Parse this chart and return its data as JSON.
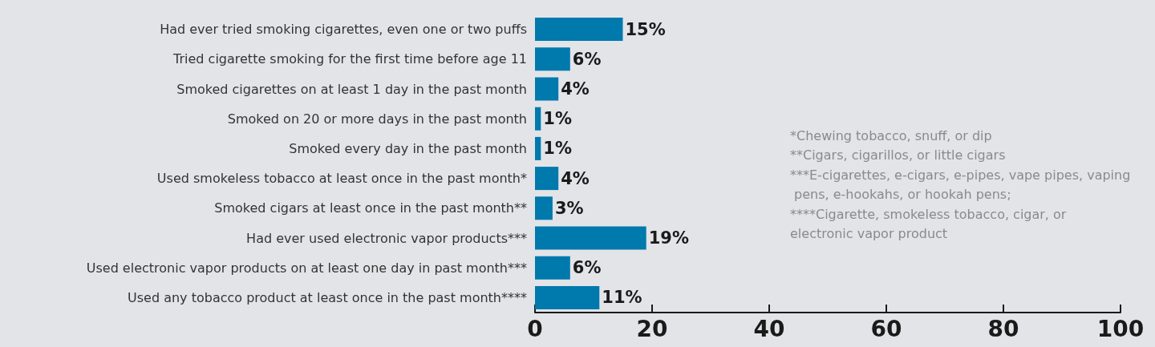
{
  "chart_data": {
    "type": "bar",
    "orientation": "horizontal",
    "categories": [
      "Had ever tried smoking cigarettes, even one or two puffs",
      "Tried cigarette smoking for the first time before age 11",
      "Smoked cigarettes on at least 1 day in the past month",
      "Smoked on 20 or more days in the past month",
      "Smoked every day in the past month",
      "Used smokeless tobacco at least once in the past month*",
      "Smoked cigars at least once in the past month**",
      "Had ever used electronic vapor products***",
      "Used electronic vapor products on at least one day in past month***",
      "Used any tobacco product at least once in the past month****"
    ],
    "values": [
      15,
      6,
      4,
      1,
      1,
      4,
      3,
      19,
      6,
      11
    ],
    "value_labels": [
      "15%",
      "6%",
      "4%",
      "1%",
      "1%",
      "4%",
      "3%",
      "19%",
      "6%",
      "11%"
    ],
    "color": "#0079ad",
    "xlim": [
      0,
      100
    ],
    "xticks": [
      0,
      20,
      40,
      60,
      80,
      100
    ],
    "grid": false,
    "annotations": [
      "*Chewing tobacco, snuff, or dip",
      "**Cigars, cigarillos, or little cigars",
      "***E-cigarettes, e-cigars, e-pipes, vape pipes, vaping pens, e-hookahs, or hookah pens;",
      "****Cigarette, smokeless tobacco, cigar, or electronic vapor product"
    ]
  }
}
